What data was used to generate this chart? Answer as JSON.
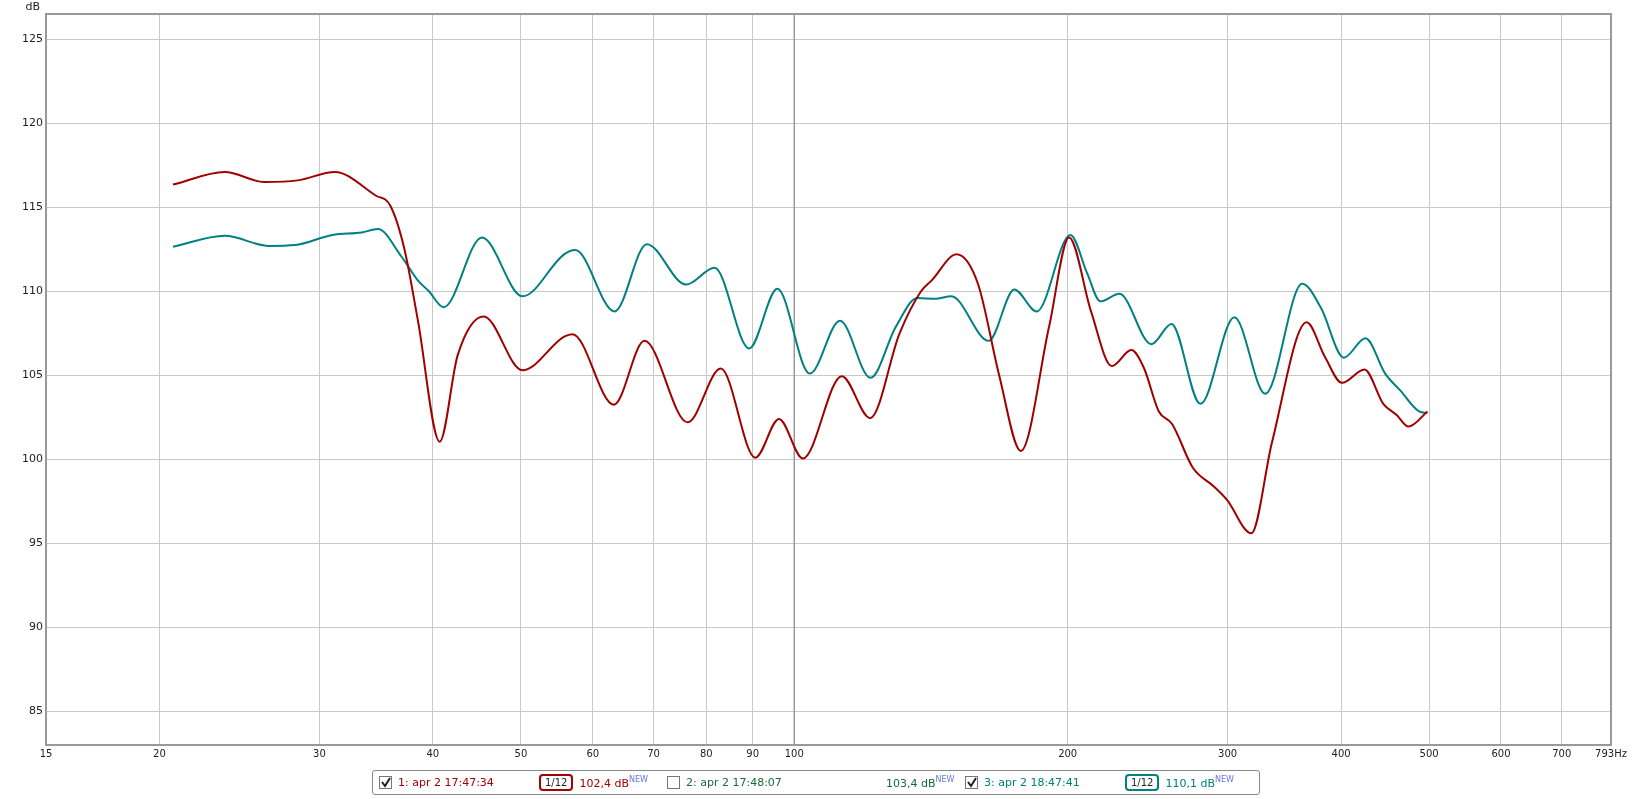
{
  "chart_data": {
    "type": "line",
    "ylabel": "dB",
    "log": "x",
    "grid": true,
    "marker": "none",
    "legend": "bottom",
    "xlim": [
      15,
      793
    ],
    "ylim": [
      83,
      126.5
    ],
    "xticks": [
      15,
      20,
      30,
      40,
      50,
      60,
      70,
      80,
      90,
      100,
      200,
      300,
      400,
      500,
      600,
      700,
      {
        "value": 793,
        "label": "793Hz"
      }
    ],
    "yticks": [
      85,
      90,
      95,
      100,
      105,
      110,
      115,
      120,
      125
    ],
    "ref_lines": [
      {
        "axis": "x",
        "value": 100,
        "color": "#999999"
      }
    ],
    "annotations": [
      "1/12",
      "102,4 dB$^{NEW}$",
      "2: apr 2 17:48:07",
      "103,4 dB$^{NEW}$",
      "1/12",
      "110,1 dB$^{NEW}$"
    ],
    "series": [
      {
        "name": "1: apr 2 17:47:34",
        "color": "#a00000",
        "x": [
          20.7,
          23.6,
          26.1,
          28.4,
          31.2,
          34.6,
          35.9,
          37.2,
          38.5,
          40.7,
          42.6,
          45.5,
          50.2,
          55.8,
          57.0,
          63.3,
          68.4,
          76.3,
          83.0,
          90.6,
          96.2,
          102.2,
          112.8,
          121.2,
          130.6,
          137.9,
          141.7,
          150.9,
          159.3,
          168.2,
          177.6,
          190.8,
          200.7,
          212.2,
          223.7,
          235.0,
          242.6,
          252.0,
          260.6,
          274.7,
          289.5,
          299.4,
          318.6,
          335.7,
          366.6,
          383.9,
          400.9,
          424.4,
          445.2,
          460.3,
          474.6,
          498
        ],
        "values": [
          116.35,
          117.1,
          116.5,
          116.6,
          117.1,
          115.7,
          115.1,
          112.55,
          108.3,
          101.05,
          106.2,
          108.5,
          105.3,
          107.3,
          107.45,
          103.25,
          107.05,
          102.2,
          105.4,
          100.1,
          102.4,
          100.05,
          104.95,
          102.45,
          107.5,
          110.0,
          110.65,
          112.2,
          110.45,
          104.95,
          100.5,
          107.9,
          113.2,
          108.8,
          105.55,
          106.5,
          105.45,
          102.85,
          102.1,
          99.5,
          98.4,
          97.6,
          95.6,
          101.0,
          108.15,
          106.1,
          104.55,
          105.35,
          103.3,
          102.65,
          101.95,
          102.85
        ]
      },
      {
        "name": "3: apr 2 18:47:41",
        "color": "#008080",
        "x": [
          20.7,
          23.6,
          26.4,
          28.2,
          31.0,
          33.4,
          34.8,
          36.9,
          38.5,
          39.6,
          41.1,
          45.3,
          50.2,
          55.8,
          57.4,
          63.4,
          68.8,
          76.0,
          81.7,
          89.2,
          95.8,
          104.0,
          112.3,
          121.3,
          129.4,
          136.6,
          143.0,
          148.9,
          163.7,
          174.7,
          184.9,
          201.4,
          210.2,
          217.3,
          228.0,
          247.3,
          260.2,
          280.0,
          305.2,
          330.1,
          362.5,
          380.2,
          402.7,
          425.6,
          447.3,
          464.7,
          487.4,
          497.7
        ],
        "values": [
          112.65,
          113.3,
          112.7,
          112.75,
          113.35,
          113.5,
          113.7,
          112.1,
          110.65,
          110.0,
          109.05,
          113.2,
          109.7,
          112.2,
          112.45,
          108.8,
          112.8,
          110.4,
          111.4,
          106.6,
          110.15,
          105.1,
          108.25,
          104.85,
          107.9,
          109.6,
          109.55,
          109.7,
          107.05,
          110.1,
          108.8,
          113.35,
          111.05,
          109.4,
          109.85,
          106.85,
          108.05,
          103.3,
          108.45,
          103.9,
          110.45,
          109.0,
          106.05,
          107.2,
          105.1,
          104.1,
          102.85,
          102.75
        ]
      }
    ]
  }
}
